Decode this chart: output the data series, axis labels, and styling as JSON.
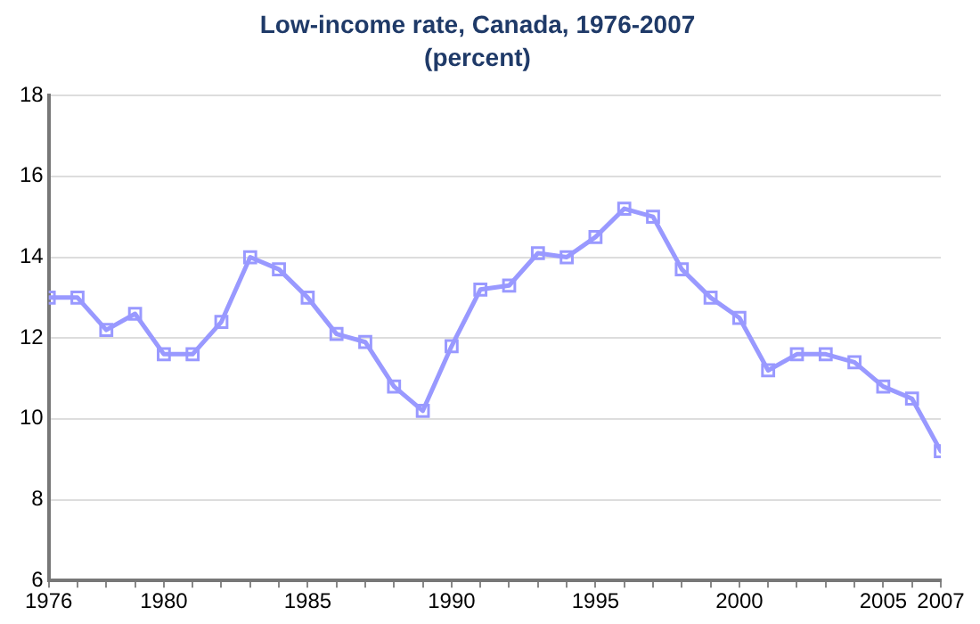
{
  "chart_data": {
    "type": "line",
    "title": "Low-income rate, Canada, 1976-2007",
    "subtitle": "(percent)",
    "x": [
      1976,
      1977,
      1978,
      1979,
      1980,
      1981,
      1982,
      1983,
      1984,
      1985,
      1986,
      1987,
      1988,
      1989,
      1990,
      1991,
      1992,
      1993,
      1994,
      1995,
      1996,
      1997,
      1998,
      1999,
      2000,
      2001,
      2002,
      2003,
      2004,
      2005,
      2006,
      2007
    ],
    "series": [
      {
        "color": "#9999ff",
        "values": [
          13.0,
          13.0,
          12.2,
          12.6,
          11.6,
          11.6,
          12.4,
          14.0,
          13.7,
          13.0,
          12.1,
          11.9,
          10.8,
          10.2,
          11.8,
          13.2,
          13.3,
          14.1,
          14.0,
          14.5,
          15.2,
          15.0,
          13.7,
          13.0,
          12.5,
          11.2,
          11.6,
          11.6,
          11.4,
          10.8,
          10.5,
          9.2
        ]
      }
    ],
    "xlim": [
      1976,
      2007
    ],
    "xticks": [
      1976,
      {
        "value": 1977,
        "label": null
      },
      {
        "value": 1978,
        "label": null
      },
      {
        "value": 1979,
        "label": null
      },
      1980,
      {
        "value": 1981,
        "label": null
      },
      {
        "value": 1982,
        "label": null
      },
      {
        "value": 1983,
        "label": null
      },
      {
        "value": 1984,
        "label": null
      },
      1985,
      {
        "value": 1986,
        "label": null
      },
      {
        "value": 1987,
        "label": null
      },
      {
        "value": 1988,
        "label": null
      },
      {
        "value": 1989,
        "label": null
      },
      1990,
      {
        "value": 1991,
        "label": null
      },
      {
        "value": 1992,
        "label": null
      },
      {
        "value": 1993,
        "label": null
      },
      {
        "value": 1994,
        "label": null
      },
      1995,
      {
        "value": 1996,
        "label": null
      },
      {
        "value": 1997,
        "label": null
      },
      {
        "value": 1998,
        "label": null
      },
      {
        "value": 1999,
        "label": null
      },
      2000,
      {
        "value": 2001,
        "label": null
      },
      {
        "value": 2002,
        "label": null
      },
      {
        "value": 2003,
        "label": null
      },
      {
        "value": 2004,
        "label": null
      },
      2005,
      {
        "value": 2006,
        "label": null
      },
      2007
    ],
    "ylim": [
      6,
      18
    ],
    "yticks": [
      6,
      8,
      10,
      12,
      14,
      16,
      18
    ],
    "grid": "y",
    "legend": false,
    "marker": "square",
    "line_style": "solid"
  }
}
